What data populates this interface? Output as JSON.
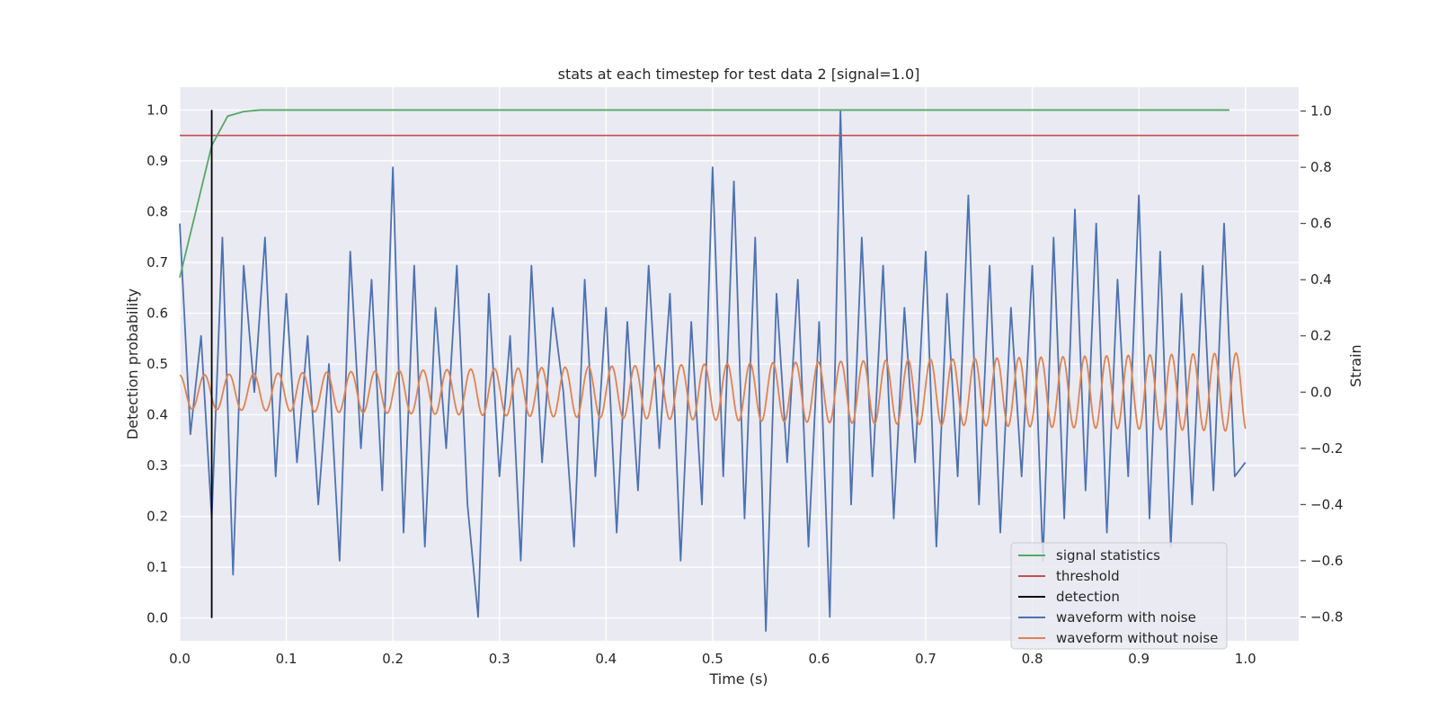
{
  "chart_data": {
    "type": "line",
    "title": "stats at each timestep for test data 2 [signal=1.0]",
    "xlabel": "Time (s)",
    "ylabel_left": "Detection probability",
    "ylabel_right": "Strain",
    "xlim": [
      0.0,
      1.05
    ],
    "ylim_left": [
      -0.045,
      1.045
    ],
    "ylim_right": [
      -0.885,
      1.085
    ],
    "x_ticks": [
      0.0,
      0.1,
      0.2,
      0.3,
      0.4,
      0.5,
      0.6,
      0.7,
      0.8,
      0.9,
      1.0
    ],
    "x_tick_labels": [
      "0.0",
      "0.1",
      "0.2",
      "0.3",
      "0.4",
      "0.5",
      "0.6",
      "0.7",
      "0.8",
      "0.9",
      "1.0"
    ],
    "y_left_ticks": [
      0.0,
      0.1,
      0.2,
      0.3,
      0.4,
      0.5,
      0.6,
      0.7,
      0.8,
      0.9,
      1.0
    ],
    "y_left_tick_labels": [
      "0.0",
      "0.1",
      "0.2",
      "0.3",
      "0.4",
      "0.5",
      "0.6",
      "0.7",
      "0.8",
      "0.9",
      "1.0"
    ],
    "y_right_ticks": [
      -0.8,
      -0.6,
      -0.4,
      -0.2,
      0.0,
      0.2,
      0.4,
      0.6,
      0.8,
      1.0
    ],
    "y_right_tick_labels": [
      "−0.8",
      "−0.6",
      "−0.4",
      "−0.2",
      "0.0",
      "0.2",
      "0.4",
      "0.6",
      "0.8",
      "1.0"
    ],
    "grid": true,
    "legend_position": "bottom-right",
    "series": [
      {
        "name": "signal statistics",
        "axis": "left",
        "color": "#55a868",
        "x": [
          0.0,
          0.015,
          0.03,
          0.045,
          0.06,
          0.075,
          0.2,
          0.4,
          0.6,
          0.8,
          0.985
        ],
        "y": [
          0.67,
          0.8,
          0.93,
          0.988,
          0.997,
          1.0,
          1.0,
          1.0,
          1.0,
          1.0,
          1.0
        ]
      },
      {
        "name": "threshold",
        "axis": "left",
        "color": "#c44e52",
        "x": [
          0.0,
          1.05
        ],
        "y": [
          0.95,
          0.95
        ]
      },
      {
        "name": "detection",
        "axis": "left",
        "color": "#000000",
        "x": [
          0.03,
          0.03
        ],
        "y": [
          0.0,
          1.0
        ]
      },
      {
        "name": "waveform with noise",
        "axis": "right",
        "color": "#4c72b0",
        "x": [
          0.0,
          0.01,
          0.02,
          0.03,
          0.04,
          0.05,
          0.06,
          0.07,
          0.08,
          0.09,
          0.1,
          0.11,
          0.12,
          0.13,
          0.14,
          0.15,
          0.16,
          0.17,
          0.18,
          0.19,
          0.2,
          0.21,
          0.22,
          0.23,
          0.24,
          0.25,
          0.26,
          0.27,
          0.28,
          0.29,
          0.3,
          0.31,
          0.32,
          0.33,
          0.34,
          0.35,
          0.36,
          0.37,
          0.38,
          0.39,
          0.4,
          0.41,
          0.42,
          0.43,
          0.44,
          0.45,
          0.46,
          0.47,
          0.48,
          0.49,
          0.5,
          0.51,
          0.52,
          0.53,
          0.54,
          0.55,
          0.56,
          0.57,
          0.58,
          0.59,
          0.6,
          0.61,
          0.62,
          0.63,
          0.64,
          0.65,
          0.66,
          0.67,
          0.68,
          0.69,
          0.7,
          0.71,
          0.72,
          0.73,
          0.74,
          0.75,
          0.76,
          0.77,
          0.78,
          0.79,
          0.8,
          0.81,
          0.82,
          0.83,
          0.84,
          0.85,
          0.86,
          0.87,
          0.88,
          0.89,
          0.9,
          0.91,
          0.92,
          0.93,
          0.94,
          0.95,
          0.96,
          0.97,
          0.98,
          0.99,
          1.0
        ],
        "y": [
          0.6,
          -0.15,
          0.2,
          -0.45,
          0.55,
          -0.65,
          0.45,
          0.0,
          0.55,
          -0.3,
          0.35,
          -0.25,
          0.2,
          -0.4,
          0.1,
          -0.6,
          0.5,
          -0.2,
          0.4,
          -0.35,
          0.8,
          -0.5,
          0.45,
          -0.55,
          0.3,
          -0.2,
          0.45,
          -0.4,
          -0.8,
          0.35,
          -0.3,
          0.2,
          -0.6,
          0.45,
          -0.25,
          0.3,
          0.0,
          -0.55,
          0.4,
          -0.3,
          0.3,
          -0.5,
          0.25,
          -0.35,
          0.45,
          -0.2,
          0.35,
          -0.6,
          0.25,
          -0.4,
          0.8,
          -0.3,
          0.75,
          -0.45,
          0.55,
          -0.85,
          0.35,
          -0.25,
          0.4,
          -0.55,
          0.25,
          -0.8,
          1.0,
          -0.4,
          0.55,
          -0.3,
          0.45,
          -0.45,
          0.3,
          -0.25,
          0.5,
          -0.55,
          0.35,
          -0.3,
          0.7,
          -0.4,
          0.45,
          -0.5,
          0.3,
          -0.3,
          0.45,
          -0.6,
          0.55,
          -0.45,
          0.65,
          -0.35,
          0.6,
          -0.5,
          0.4,
          -0.3,
          0.7,
          -0.45,
          0.5,
          -0.55,
          0.35,
          -0.4,
          0.45,
          -0.35,
          0.6,
          -0.3,
          -0.25
        ]
      },
      {
        "name": "waveform without noise",
        "axis": "right",
        "color": "#dd8452",
        "x_start": 0.0,
        "x_end": 1.0,
        "cycles": 43,
        "amplitude_start": 0.06,
        "amplitude_end": 0.14
      }
    ]
  }
}
